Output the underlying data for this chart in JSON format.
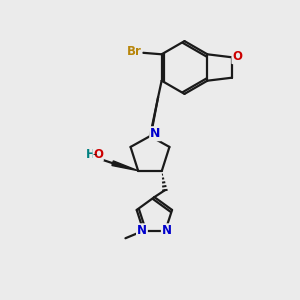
{
  "background_color": "#ebebeb",
  "bond_color": "#1a1a1a",
  "atom_colors": {
    "Br": "#b8860b",
    "O": "#cc0000",
    "N": "#0000cc",
    "H": "#008080",
    "C": "#1a1a1a"
  },
  "figsize": [
    3.0,
    3.0
  ],
  "dpi": 100
}
